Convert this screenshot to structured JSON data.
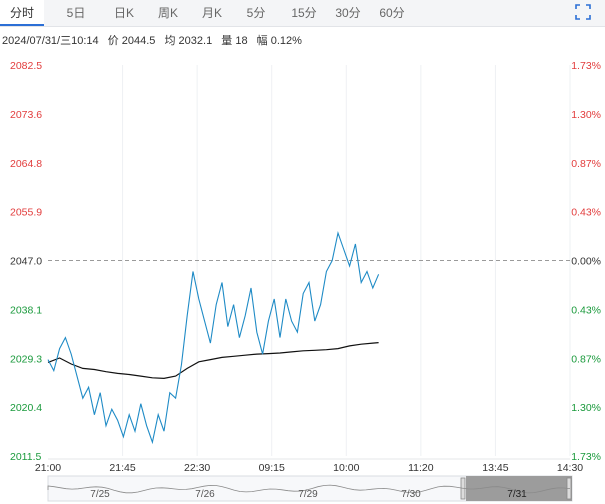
{
  "tabs": [
    {
      "label": "分时",
      "active": true
    },
    {
      "label": "5日",
      "active": false
    },
    {
      "label": "日K",
      "active": false
    },
    {
      "label": "周K",
      "active": false
    },
    {
      "label": "月K",
      "active": false
    },
    {
      "label": "5分",
      "active": false
    },
    {
      "label": "15分",
      "active": false
    },
    {
      "label": "30分",
      "active": false
    },
    {
      "label": "60分",
      "active": false
    }
  ],
  "info": {
    "datetime": "2024/07/31/三10:14",
    "price_label": "价",
    "price": "2044.5",
    "avg_label": "均",
    "avg": "2032.1",
    "vol_label": "量",
    "vol": "18",
    "change_label": "幅",
    "change": "0.12%"
  },
  "colors": {
    "up": "#e23c3c",
    "down": "#1a9a3c",
    "flat": "#333333",
    "price_line": "#1f8bc6",
    "avg_line": "#111111"
  },
  "chart_data": {
    "type": "line",
    "ref_price": 2047.0,
    "ylim": [
      2011.5,
      2082.5
    ],
    "y_ticks": [
      "2082.5",
      "2073.6",
      "2064.8",
      "2055.9",
      "2047.0",
      "2038.1",
      "2029.3",
      "2020.4",
      "2011.5"
    ],
    "pct_ticks": [
      "1.73%",
      "1.30%",
      "0.87%",
      "0.43%",
      "0.00%",
      "0.43%",
      "0.87%",
      "1.30%",
      "1.73%"
    ],
    "x_ticks": [
      "21:00",
      "21:45",
      "22:30",
      "09:15",
      "10:00",
      "11:20",
      "13:45",
      "14:30"
    ],
    "x_total": 90,
    "price_series": {
      "x": [
        0,
        1,
        2,
        3,
        4,
        5,
        6,
        7,
        8,
        9,
        10,
        11,
        12,
        13,
        14,
        15,
        16,
        17,
        18,
        19,
        20,
        21,
        22,
        23,
        24,
        25,
        26,
        27,
        28,
        29,
        30,
        31,
        32,
        33,
        34,
        35,
        36,
        37,
        38,
        39,
        40,
        41,
        42,
        43,
        44,
        45,
        46,
        47,
        48,
        49,
        50,
        51,
        52,
        53,
        54,
        55,
        56,
        57
      ],
      "y": [
        2029,
        2027,
        2031,
        2033,
        2030,
        2026,
        2022,
        2024,
        2019,
        2023,
        2017,
        2020,
        2018,
        2015,
        2019,
        2016,
        2021,
        2017,
        2014,
        2019,
        2016,
        2023,
        2022,
        2028,
        2037,
        2045,
        2040,
        2036,
        2032,
        2039,
        2043,
        2035,
        2039,
        2033,
        2037,
        2042,
        2034,
        2030,
        2036,
        2040,
        2033,
        2040,
        2036,
        2034,
        2041,
        2043,
        2036,
        2039,
        2045,
        2047,
        2052,
        2049,
        2046,
        2050,
        2043,
        2045,
        2042,
        2044.5
      ]
    },
    "avg_series": {
      "x": [
        0,
        2,
        4,
        6,
        8,
        10,
        12,
        14,
        16,
        18,
        20,
        22,
        24,
        26,
        28,
        30,
        32,
        34,
        36,
        38,
        40,
        42,
        44,
        46,
        48,
        50,
        52,
        54,
        56,
        57
      ],
      "y": [
        2028.5,
        2029.3,
        2028.2,
        2027.4,
        2027.2,
        2026.8,
        2026.5,
        2026.3,
        2026.0,
        2025.7,
        2025.6,
        2026.0,
        2027.4,
        2028.6,
        2029.0,
        2029.4,
        2029.6,
        2029.8,
        2030.0,
        2030.1,
        2030.2,
        2030.4,
        2030.6,
        2030.7,
        2030.8,
        2031.0,
        2031.5,
        2031.8,
        2032.0,
        2032.1
      ]
    },
    "nav_labels": [
      "7/25",
      "7/26",
      "7/29",
      "7/30",
      "7/31"
    ]
  }
}
